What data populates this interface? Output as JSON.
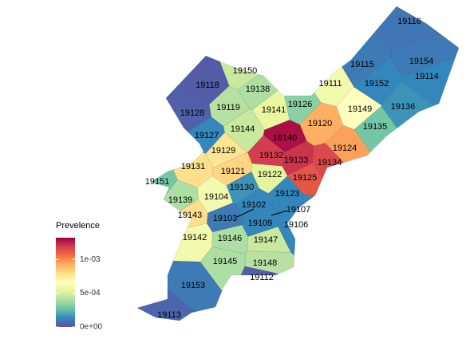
{
  "chart_data": {
    "type": "choropleth",
    "legend_title": "Prevelence",
    "categories": [
      "19116",
      "19154",
      "19114",
      "19115",
      "19152",
      "19136",
      "19111",
      "19149",
      "19135",
      "19150",
      "19118",
      "19128",
      "19138",
      "19119",
      "19141",
      "19126",
      "19120",
      "19124",
      "19144",
      "19127",
      "19129",
      "19140",
      "19132",
      "19133",
      "19134",
      "19125",
      "19131",
      "19121",
      "19122",
      "19130",
      "19123",
      "19151",
      "19139",
      "19104",
      "19143",
      "19102",
      "19103",
      "19107",
      "19109",
      "19106",
      "19142",
      "19146",
      "19147",
      "19145",
      "19148",
      "19153",
      "19112",
      "19113"
    ],
    "values": [
      9e-05,
      0.0001,
      0.00013,
      0.0001,
      0.00013,
      0.00016,
      0.0006,
      0.00066,
      0.00029,
      0.00046,
      3e-05,
      4e-05,
      0.0004,
      0.00042,
      0.00055,
      0.00033,
      0.00092,
      0.00095,
      0.00046,
      0.00013,
      0.00077,
      0.00129,
      0.00119,
      0.00121,
      0.00116,
      0.00112,
      0.00079,
      0.00082,
      0.00053,
      0.00016,
      0.00013,
      0.00029,
      0.0004,
      0.0006,
      0.00079,
      0.00013,
      0.0001,
      0.00013,
      0.00013,
      0.00013,
      0.0006,
      0.0004,
      0.00046,
      0.0004,
      0.00042,
      0.0001,
      3e-05,
      5e-05
    ],
    "colorscale": [
      "#5e4fa2",
      "#3288bd",
      "#66c2a5",
      "#abdda4",
      "#e6f598",
      "#ffffbf",
      "#fee08b",
      "#fdae61",
      "#f46d43",
      "#d53e4f",
      "#9e0142"
    ],
    "legend_lim": [
      0,
      0.00132
    ],
    "legend_ticks": [
      {
        "value": 0,
        "label": "0e+00"
      },
      {
        "value": 0.0005,
        "label": "5e-04"
      },
      {
        "value": 0.001,
        "label": "1e-03"
      }
    ]
  }
}
